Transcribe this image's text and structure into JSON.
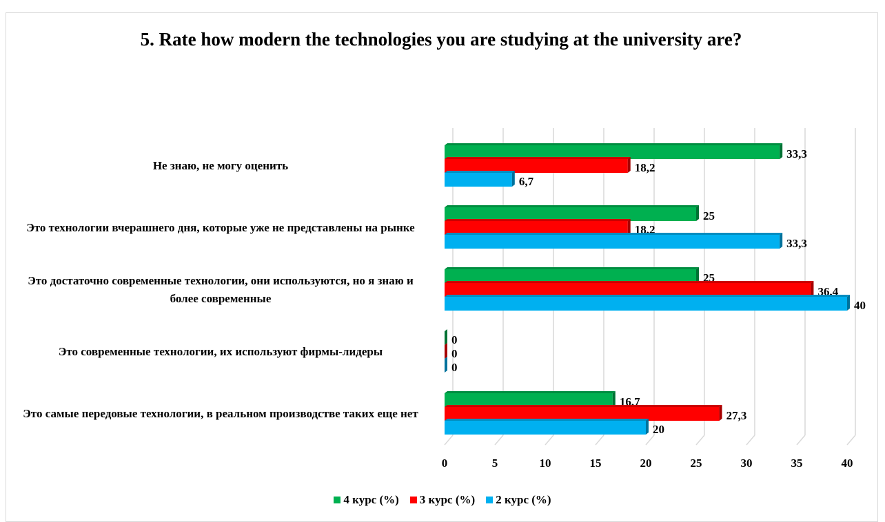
{
  "chart_data": {
    "type": "bar",
    "orientation": "horizontal",
    "title": "5. Rate how modern the technologies you are studying at the university are?",
    "categories": [
      "Не знаю, не могу оценить",
      "Это технологии вчерашнего дня, которые уже не представлены на рынке",
      "Это достаточно современные технологии, они используются, но я знаю и более современные",
      "Это современные технологии, их используют фирмы-лидеры",
      "Это самые передовые технологии, в реальном производстве таких еще нет"
    ],
    "series": [
      {
        "name": "4 курс (%)",
        "color": "#00b050",
        "values": [
          33.3,
          25,
          25,
          0,
          16.7
        ],
        "value_labels": [
          "33,3",
          "25",
          "25",
          "0",
          "16,7"
        ]
      },
      {
        "name": "3 курс (%)",
        "color": "#ff0000",
        "values": [
          18.2,
          18.2,
          36.4,
          0,
          27.3
        ],
        "value_labels": [
          "18,2",
          "18,2",
          "36,4",
          "0",
          "27,3"
        ]
      },
      {
        "name": "2 курс (%)",
        "color": "#00b0f0",
        "values": [
          6.7,
          33.3,
          40,
          0,
          20
        ],
        "value_labels": [
          "6,7",
          "33,3",
          "40",
          "0",
          "20"
        ]
      }
    ],
    "xlim": [
      0,
      40
    ],
    "xticks": [
      0,
      5,
      10,
      15,
      20,
      25,
      30,
      35,
      40
    ],
    "grid": true,
    "legend": "bottom"
  }
}
